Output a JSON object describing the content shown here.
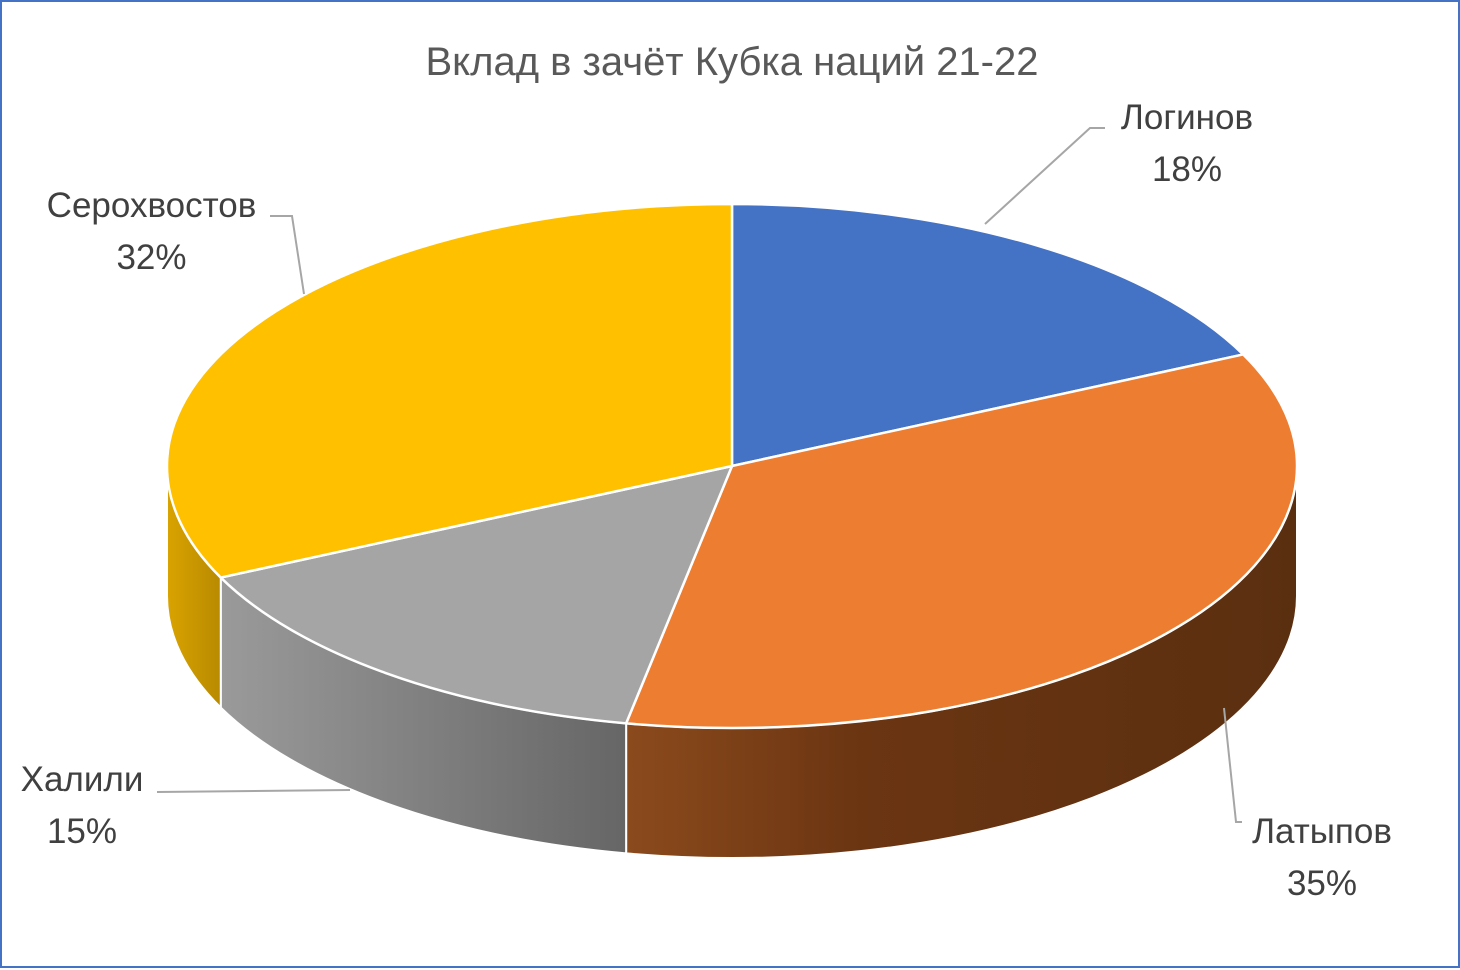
{
  "chart_data": {
    "type": "pie",
    "title": "Вклад в зачёт Кубка наций 21-22",
    "slices": [
      {
        "name": "Логинов",
        "percent_label": "18%",
        "value": 18,
        "color": "#4472c4",
        "side_color": "#2f528f"
      },
      {
        "name": "Латыпов",
        "percent_label": "35%",
        "value": 35,
        "color": "#ed7d31",
        "side_color": "#6b3a15"
      },
      {
        "name": "Халили",
        "percent_label": "15%",
        "value": 15,
        "color": "#a5a5a5",
        "side_color": "#7a7a7a"
      },
      {
        "name": "Серохвостов",
        "percent_label": "32%",
        "value": 32,
        "color": "#ffc000",
        "side_color": "#c99700"
      }
    ],
    "legend": "none",
    "data_labels": "category name and percentage, outside with leader lines",
    "style": "3D pie"
  }
}
